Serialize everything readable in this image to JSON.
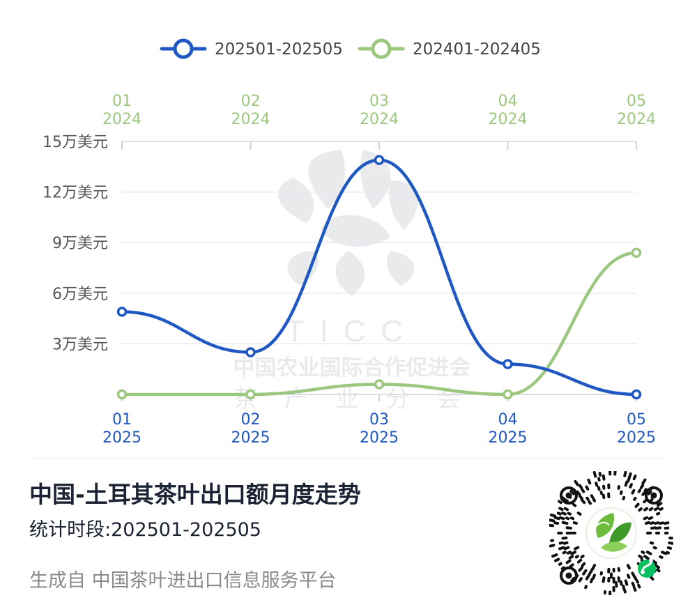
{
  "chart_data": {
    "type": "line",
    "series": [
      {
        "name": "202501-202505",
        "color": "#1f57c3",
        "x_labels": [
          [
            "01",
            "2025"
          ],
          [
            "02",
            "2025"
          ],
          [
            "03",
            "2025"
          ],
          [
            "04",
            "2025"
          ],
          [
            "05",
            "2025"
          ]
        ],
        "values": [
          4.9,
          2.5,
          13.9,
          1.8,
          0.0
        ]
      },
      {
        "name": "202401-202405",
        "color": "#9bc77f",
        "x_labels": [
          [
            "01",
            "2024"
          ],
          [
            "02",
            "2024"
          ],
          [
            "03",
            "2024"
          ],
          [
            "04",
            "2024"
          ],
          [
            "05",
            "2024"
          ]
        ],
        "values": [
          0.0,
          0.0,
          0.6,
          0.0,
          8.4
        ]
      }
    ],
    "y_ticks": [
      {
        "value": 3,
        "label": "3万美元"
      },
      {
        "value": 6,
        "label": "6万美元"
      },
      {
        "value": 9,
        "label": "9万美元"
      },
      {
        "value": 12,
        "label": "12万美元"
      },
      {
        "value": 15,
        "label": "15万美元"
      }
    ],
    "ylim": [
      0,
      15
    ],
    "grid": true,
    "legend_position": "top"
  },
  "footer": {
    "title": "中国-土耳其茶叶出口额月度走势",
    "period": "统计时段:202501-202505",
    "source": "生成自 中国茶叶进出口信息服务平台"
  },
  "watermark": {
    "letters": "TICC",
    "line1": "中国农业国际合作促进会",
    "line2": "茶 产 业 分 会"
  },
  "icons": {
    "qr": "mini-program-qr-code-icon",
    "logo": "tea-leaf-logo-icon"
  }
}
